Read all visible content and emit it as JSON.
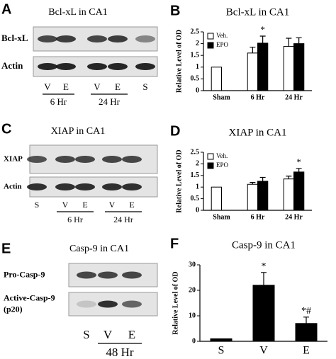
{
  "blots": [
    {
      "panel": "A",
      "title": "Bcl-xL in CA1",
      "rows": [
        [
          "Bcl-xL"
        ],
        [
          "Actin"
        ]
      ],
      "lanes": [
        "V",
        "E",
        "V",
        "E",
        "S"
      ],
      "times": [
        "6 Hr",
        "24 Hr"
      ]
    },
    {
      "panel": "C",
      "title": "XIAP in CA1",
      "rows": [
        [
          "XIAP"
        ],
        [
          "Actin"
        ]
      ],
      "lanes": [
        "S",
        "V",
        "E",
        "V",
        "E"
      ],
      "times": [
        "6 Hr",
        "24 Hr"
      ]
    },
    {
      "panel": "E",
      "title": "Casp-9 in CA1",
      "rows": [
        [
          "Pro-Casp-9"
        ],
        [
          "Active-Casp-9",
          "(p20)"
        ]
      ],
      "lanes": [
        "S",
        "V",
        "E"
      ],
      "times": [
        "48 Hr"
      ]
    }
  ],
  "chart_data": [
    {
      "type": "bar",
      "panel": "B",
      "title": "Bcl-xL in CA1",
      "y_label": "Relative Level of OD",
      "categories": [
        "Sham",
        "6 Hr",
        "24 Hr"
      ],
      "series": [
        {
          "name": "Veh.",
          "color": "#ffffff",
          "values": [
            1,
            1.6,
            1.88
          ],
          "errors": [
            0,
            0.25,
            0.35
          ],
          "annotations": [
            null,
            null,
            null
          ]
        },
        {
          "name": "EPO",
          "color": "#000000",
          "values": [
            null,
            2.02,
            2.0
          ],
          "errors": [
            null,
            0.3,
            0.25
          ],
          "annotations": [
            null,
            "*",
            null
          ]
        }
      ],
      "ylim": [
        0,
        2.5
      ],
      "yticks": [
        0,
        0.5,
        1,
        1.5,
        2,
        2.5
      ],
      "legend": "upper left"
    },
    {
      "type": "bar",
      "panel": "D",
      "title": "XIAP in CA1",
      "y_label": "Relative Level of OD",
      "categories": [
        "Sham",
        "6 Hr",
        "24 Hr"
      ],
      "series": [
        {
          "name": "Veh.",
          "color": "#ffffff",
          "values": [
            1,
            1.12,
            1.35
          ],
          "errors": [
            0,
            0.08,
            0.12
          ],
          "annotations": [
            null,
            null,
            null
          ]
        },
        {
          "name": "EPO",
          "color": "#000000",
          "values": [
            null,
            1.25,
            1.65
          ],
          "errors": [
            null,
            0.17,
            0.15
          ],
          "annotations": [
            null,
            null,
            "*"
          ]
        }
      ],
      "ylim": [
        0,
        2.5
      ],
      "yticks": [
        0,
        0.5,
        1,
        1.5,
        2,
        2.5
      ],
      "legend": "upper left"
    },
    {
      "type": "bar",
      "panel": "F",
      "title": "Casp-9 in CA1",
      "y_label": "Relative Level of OD",
      "categories": [
        "S",
        "V",
        "E"
      ],
      "series": [
        {
          "color": "#000000",
          "values": [
            1,
            22,
            7
          ],
          "errors": [
            0,
            5,
            2.5
          ],
          "annotations": [
            null,
            "*",
            "*#"
          ]
        }
      ],
      "ylim": [
        0,
        30
      ],
      "yticks": [
        0,
        10,
        20,
        30
      ]
    }
  ]
}
